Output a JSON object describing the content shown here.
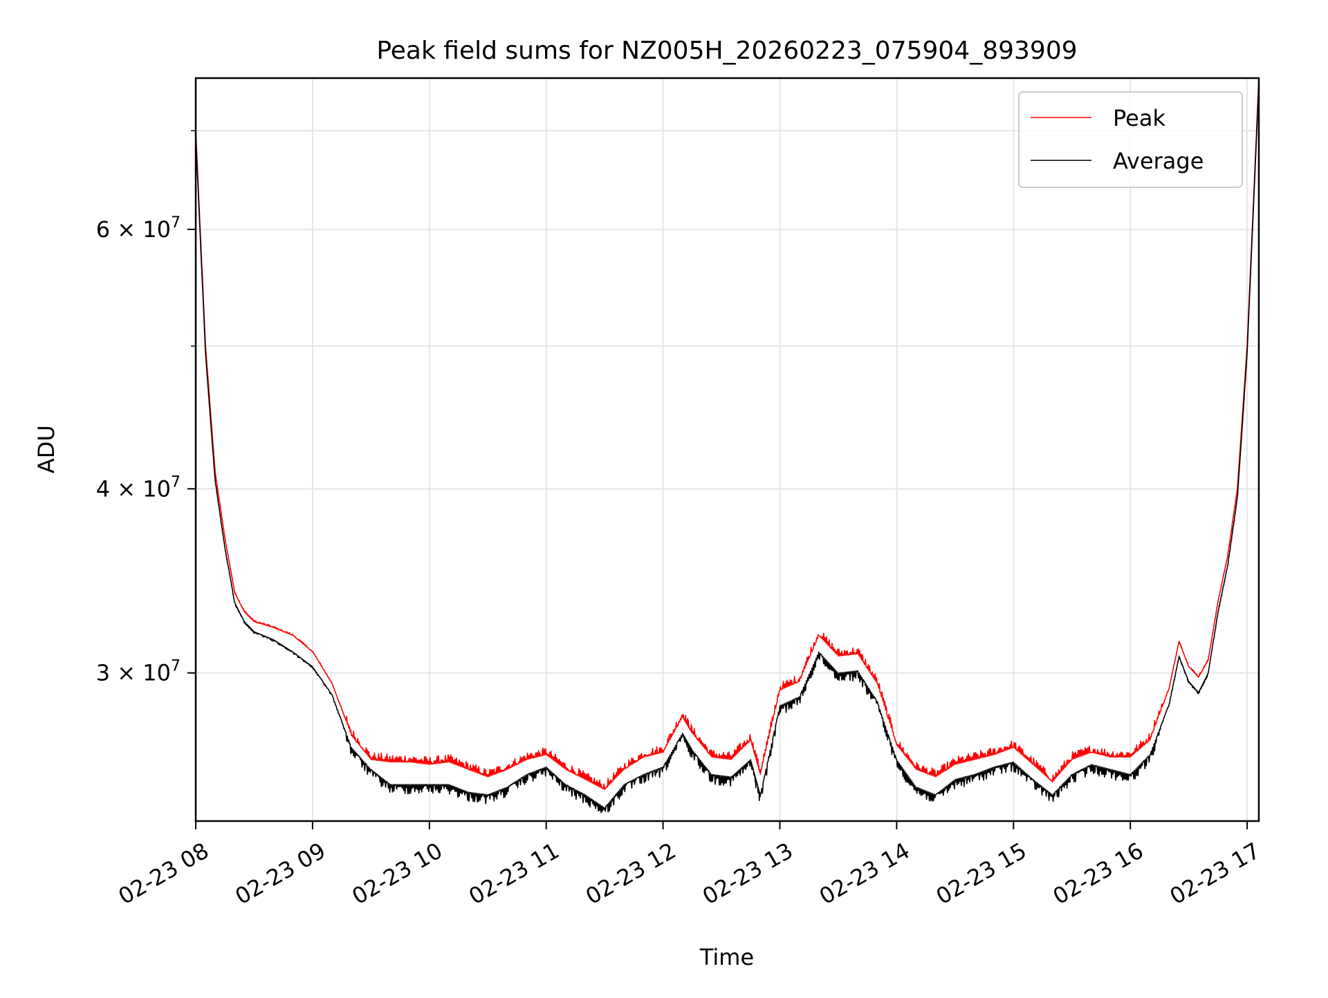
{
  "chart_data": {
    "type": "line",
    "title": "Peak field sums for NZ005H_20260223_075904_893909",
    "xlabel": "Time",
    "ylabel": "ADU",
    "y_scale": "log",
    "ylim": [
      23800000,
      76000000
    ],
    "xlim": [
      "2026-02-23 08:00",
      "2026-02-23 17:06"
    ],
    "x_ticks": [
      {
        "t": "2026-02-23 08:00",
        "label": "02-23 08"
      },
      {
        "t": "2026-02-23 09:00",
        "label": "02-23 09"
      },
      {
        "t": "2026-02-23 10:00",
        "label": "02-23 10"
      },
      {
        "t": "2026-02-23 11:00",
        "label": "02-23 11"
      },
      {
        "t": "2026-02-23 12:00",
        "label": "02-23 12"
      },
      {
        "t": "2026-02-23 13:00",
        "label": "02-23 13"
      },
      {
        "t": "2026-02-23 14:00",
        "label": "02-23 14"
      },
      {
        "t": "2026-02-23 15:00",
        "label": "02-23 15"
      },
      {
        "t": "2026-02-23 16:00",
        "label": "02-23 16"
      },
      {
        "t": "2026-02-23 17:00",
        "label": "02-23 17"
      }
    ],
    "y_major_ticks": [
      {
        "value": 30000000,
        "base": "3 × 10",
        "exp": "7"
      },
      {
        "value": 40000000,
        "base": "4 × 10",
        "exp": "7"
      },
      {
        "value": 60000000,
        "base": "6 × 10",
        "exp": "7"
      }
    ],
    "y_minor_ticks": [
      50000000,
      70000000
    ],
    "grid": true,
    "legend": {
      "position": "top-right",
      "entries": [
        {
          "label": "Peak",
          "color": "#ff0000"
        },
        {
          "label": "Average",
          "color": "#000000"
        }
      ]
    },
    "series": [
      {
        "name": "Peak",
        "color": "#ff0000",
        "x": [
          "2026-02-23 08:00",
          "2026-02-23 08:05",
          "2026-02-23 08:10",
          "2026-02-23 08:15",
          "2026-02-23 08:20",
          "2026-02-23 08:25",
          "2026-02-23 08:30",
          "2026-02-23 08:40",
          "2026-02-23 08:50",
          "2026-02-23 09:00",
          "2026-02-23 09:10",
          "2026-02-23 09:20",
          "2026-02-23 09:30",
          "2026-02-23 09:40",
          "2026-02-23 09:50",
          "2026-02-23 10:00",
          "2026-02-23 10:10",
          "2026-02-23 10:20",
          "2026-02-23 10:30",
          "2026-02-23 10:40",
          "2026-02-23 10:50",
          "2026-02-23 11:00",
          "2026-02-23 11:10",
          "2026-02-23 11:20",
          "2026-02-23 11:30",
          "2026-02-23 11:40",
          "2026-02-23 11:50",
          "2026-02-23 12:00",
          "2026-02-23 12:10",
          "2026-02-23 12:15",
          "2026-02-23 12:25",
          "2026-02-23 12:35",
          "2026-02-23 12:45",
          "2026-02-23 12:50",
          "2026-02-23 13:00",
          "2026-02-23 13:10",
          "2026-02-23 13:20",
          "2026-02-23 13:30",
          "2026-02-23 13:40",
          "2026-02-23 13:50",
          "2026-02-23 14:00",
          "2026-02-23 14:10",
          "2026-02-23 14:20",
          "2026-02-23 14:30",
          "2026-02-23 14:40",
          "2026-02-23 14:50",
          "2026-02-23 15:00",
          "2026-02-23 15:10",
          "2026-02-23 15:20",
          "2026-02-23 15:30",
          "2026-02-23 15:40",
          "2026-02-23 15:50",
          "2026-02-23 16:00",
          "2026-02-23 16:10",
          "2026-02-23 16:20",
          "2026-02-23 16:25",
          "2026-02-23 16:30",
          "2026-02-23 16:35",
          "2026-02-23 16:40",
          "2026-02-23 16:45",
          "2026-02-23 16:50",
          "2026-02-23 16:55",
          "2026-02-23 17:00",
          "2026-02-23 17:06"
        ],
        "values": [
          70000000,
          50000000,
          41000000,
          37000000,
          34000000,
          33000000,
          32500000,
          32200000,
          31800000,
          31000000,
          29500000,
          27200000,
          26200000,
          26100000,
          26100000,
          26000000,
          26100000,
          25800000,
          25500000,
          25800000,
          26200000,
          26400000,
          25800000,
          25400000,
          25000000,
          25800000,
          26300000,
          26500000,
          28000000,
          27300000,
          26300000,
          26200000,
          27000000,
          25600000,
          29200000,
          29600000,
          31800000,
          30800000,
          30900000,
          29500000,
          26800000,
          25800000,
          25500000,
          26000000,
          26200000,
          26400000,
          26700000,
          26000000,
          25300000,
          26200000,
          26500000,
          26300000,
          26300000,
          27000000,
          29300000,
          31500000,
          30300000,
          29800000,
          30600000,
          33500000,
          36000000,
          40000000,
          50000000,
          76000000
        ]
      },
      {
        "name": "Average",
        "color": "#000000",
        "x": [
          "2026-02-23 08:00",
          "2026-02-23 08:05",
          "2026-02-23 08:10",
          "2026-02-23 08:15",
          "2026-02-23 08:20",
          "2026-02-23 08:25",
          "2026-02-23 08:30",
          "2026-02-23 08:40",
          "2026-02-23 08:50",
          "2026-02-23 09:00",
          "2026-02-23 09:10",
          "2026-02-23 09:20",
          "2026-02-23 09:30",
          "2026-02-23 09:40",
          "2026-02-23 09:50",
          "2026-02-23 10:00",
          "2026-02-23 10:10",
          "2026-02-23 10:20",
          "2026-02-23 10:30",
          "2026-02-23 10:40",
          "2026-02-23 10:50",
          "2026-02-23 11:00",
          "2026-02-23 11:10",
          "2026-02-23 11:20",
          "2026-02-23 11:30",
          "2026-02-23 11:40",
          "2026-02-23 11:50",
          "2026-02-23 12:00",
          "2026-02-23 12:10",
          "2026-02-23 12:15",
          "2026-02-23 12:25",
          "2026-02-23 12:35",
          "2026-02-23 12:45",
          "2026-02-23 12:50",
          "2026-02-23 13:00",
          "2026-02-23 13:10",
          "2026-02-23 13:20",
          "2026-02-23 13:30",
          "2026-02-23 13:40",
          "2026-02-23 13:50",
          "2026-02-23 14:00",
          "2026-02-23 14:10",
          "2026-02-23 14:20",
          "2026-02-23 14:30",
          "2026-02-23 14:40",
          "2026-02-23 14:50",
          "2026-02-23 15:00",
          "2026-02-23 15:10",
          "2026-02-23 15:20",
          "2026-02-23 15:30",
          "2026-02-23 15:40",
          "2026-02-23 15:50",
          "2026-02-23 16:00",
          "2026-02-23 16:10",
          "2026-02-23 16:20",
          "2026-02-23 16:25",
          "2026-02-23 16:30",
          "2026-02-23 16:35",
          "2026-02-23 16:40",
          "2026-02-23 16:45",
          "2026-02-23 16:50",
          "2026-02-23 16:55",
          "2026-02-23 17:00",
          "2026-02-23 17:06"
        ],
        "values": [
          69500000,
          49500000,
          40500000,
          36500000,
          33500000,
          32500000,
          32000000,
          31600000,
          31000000,
          30300000,
          29000000,
          26700000,
          25800000,
          25200000,
          25200000,
          25200000,
          25200000,
          24900000,
          24800000,
          25100000,
          25600000,
          25900000,
          25200000,
          24800000,
          24300000,
          25200000,
          25600000,
          25900000,
          27300000,
          26600000,
          25600000,
          25500000,
          26200000,
          24800000,
          28500000,
          28900000,
          31000000,
          30000000,
          30100000,
          28700000,
          26200000,
          25100000,
          24800000,
          25400000,
          25600000,
          25900000,
          26100000,
          25400000,
          24800000,
          25600000,
          26000000,
          25800000,
          25600000,
          26400000,
          28600000,
          30800000,
          29600000,
          29100000,
          30000000,
          33000000,
          35500000,
          39500000,
          49500000,
          75500000
        ]
      }
    ]
  }
}
